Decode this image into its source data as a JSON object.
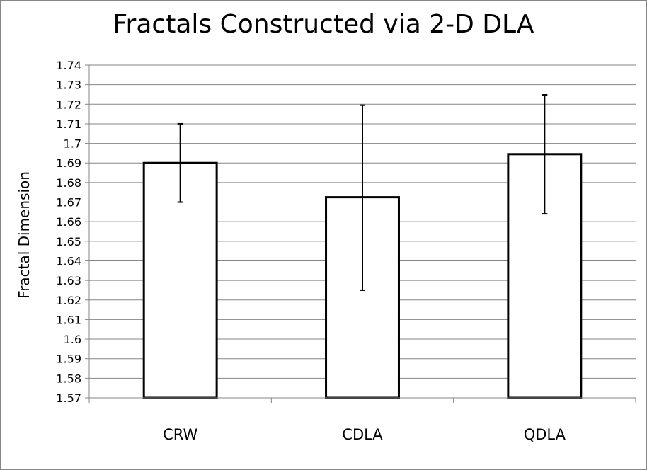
{
  "chart_data": {
    "type": "bar",
    "title": "Fractals Constructed via 2-D DLA",
    "xlabel": "",
    "ylabel": "Fractal Dimension",
    "categories": [
      "CRW",
      "CDLA",
      "QDLA"
    ],
    "values": [
      1.69,
      1.6725,
      1.6945
    ],
    "error_bars": [
      {
        "low": 1.67,
        "high": 1.71
      },
      {
        "low": 1.625,
        "high": 1.7195
      },
      {
        "low": 1.664,
        "high": 1.7248
      }
    ],
    "ylim": [
      1.57,
      1.74
    ],
    "yticks": [
      "1.57",
      "1.58",
      "1.59",
      "1.6",
      "1.61",
      "1.62",
      "1.63",
      "1.64",
      "1.65",
      "1.66",
      "1.67",
      "1.68",
      "1.69",
      "1.7",
      "1.71",
      "1.72",
      "1.73",
      "1.74"
    ],
    "grid": true,
    "legend": "none",
    "colors": {
      "bar_fill": "#ffffff",
      "bar_stroke": "#000000",
      "grid": "#868686"
    }
  }
}
